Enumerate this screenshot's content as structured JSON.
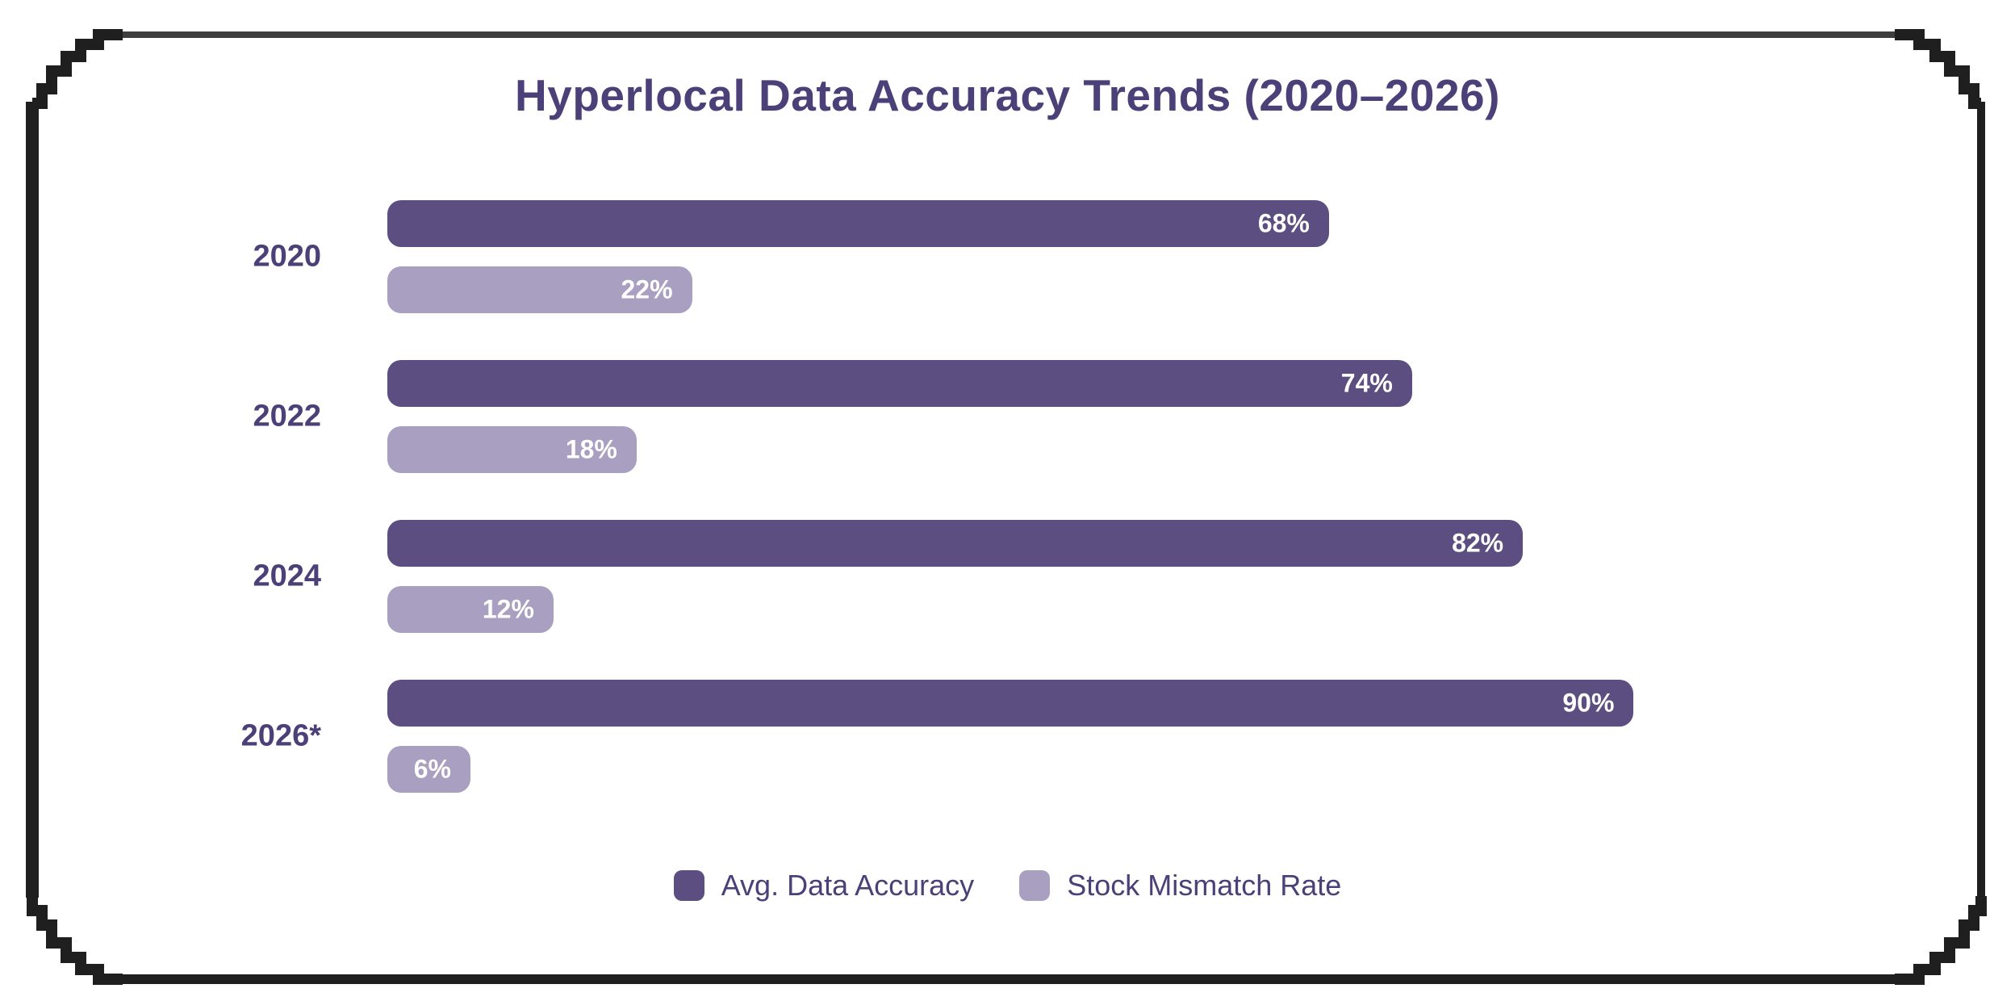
{
  "title": "Hyperlocal Data Accuracy Trends (2020–2026)",
  "colors": {
    "accent_dark": "#5c4e81",
    "accent_light": "#a89fc1",
    "text": "#4c4078",
    "value_label": "#ffffff",
    "frame": "#1f1f1f",
    "frame_top": "#3f3f3f",
    "background": "#ffffff"
  },
  "chart_data": {
    "type": "bar",
    "orientation": "horizontal",
    "title": "Hyperlocal Data Accuracy Trends (2020–2026)",
    "categories": [
      "2020",
      "2022",
      "2024",
      "2026*"
    ],
    "series": [
      {
        "name": "Avg. Data Accuracy",
        "color": "#5c4e81",
        "values": [
          68,
          74,
          82,
          90
        ],
        "value_labels": [
          "68%",
          "74%",
          "82%",
          "90%"
        ]
      },
      {
        "name": "Stock Mismatch Rate",
        "color": "#a89fc1",
        "values": [
          22,
          18,
          12,
          6
        ],
        "value_labels": [
          "22%",
          "18%",
          "12%",
          "6%"
        ]
      }
    ],
    "xlim": [
      0,
      100
    ],
    "value_suffix": "%",
    "grid": false,
    "axis_ticks": false,
    "legend_position": "bottom",
    "bar_label_position": "inside-right"
  }
}
